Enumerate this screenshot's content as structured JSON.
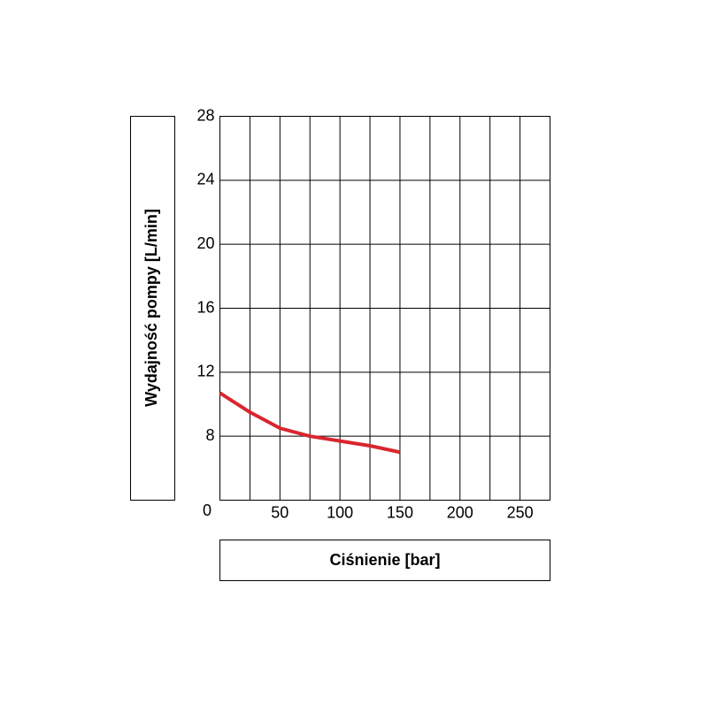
{
  "chart_data": {
    "type": "line",
    "xlabel": "Ciśnienie [bar]",
    "ylabel": "Wydajność pompy [L/min]",
    "origin_label": "0",
    "x": [
      0,
      25,
      50,
      75,
      100,
      125,
      150
    ],
    "series": [
      {
        "color": "#d9262f",
        "values": [
          10.7,
          9.5,
          8.5,
          8.0,
          7.7,
          7.4,
          7.0
        ]
      }
    ],
    "xlim": [
      0,
      275
    ],
    "ylim": [
      4,
      28
    ],
    "xticks": [
      50,
      100,
      150,
      200,
      250
    ],
    "minor_xticks": [
      25,
      75,
      125,
      175,
      225
    ],
    "yticks": [
      8,
      12,
      16,
      20,
      24,
      28
    ],
    "grid": true
  }
}
